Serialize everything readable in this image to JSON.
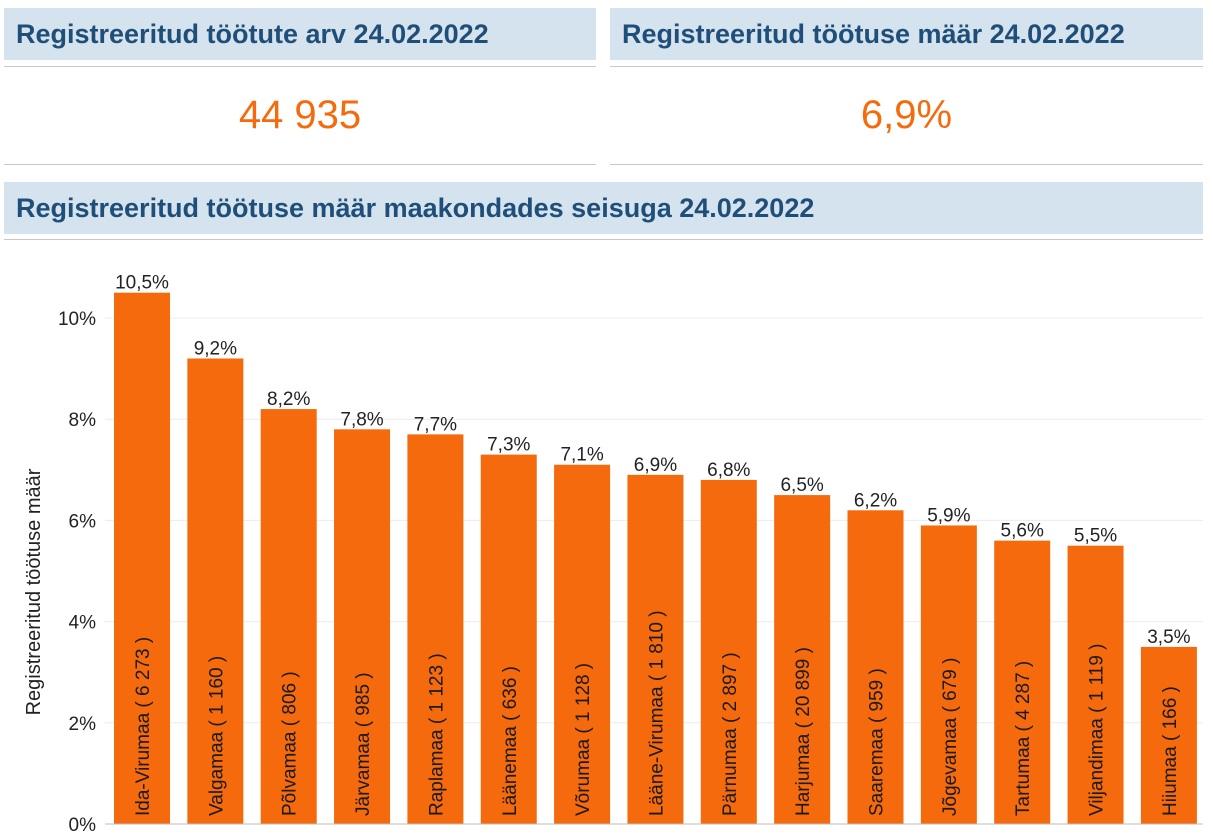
{
  "kpi_count": {
    "title": "Registreeritud töötute arv 24.02.2022",
    "value": "44 935"
  },
  "kpi_rate": {
    "title": "Registreeritud töötuse määr 24.02.2022",
    "value": "6,9%"
  },
  "chart_panel": {
    "title": "Registreeritud töötuse määr maakondades seisuga 24.02.2022"
  },
  "colors": {
    "accent": "#f46a0c",
    "header_bg": "#d5e3ee",
    "header_text": "#1f4e79"
  },
  "chart_data": {
    "type": "bar",
    "title": "Registreeritud töötuse määr maakondades seisuga 24.02.2022",
    "ylabel": "Registreeritud töötuse määr",
    "xlabel": "",
    "ylim": [
      0,
      10.8
    ],
    "yticks": [
      0,
      2,
      4,
      6,
      8,
      10
    ],
    "ytick_labels": [
      "0%",
      "2%",
      "4%",
      "6%",
      "8%",
      "10%"
    ],
    "grid": true,
    "categories": [
      "Ida-Virumaa ( 6 273 )",
      "Valgamaa ( 1 160 )",
      "Põlvamaa ( 806 )",
      "Järvamaa ( 985 )",
      "Raplamaa ( 1 123 )",
      "Läänemaa ( 636 )",
      "Võrumaa ( 1 128 )",
      "Lääne-Virumaa ( 1 810 )",
      "Pärnumaa ( 2 897 )",
      "Harjumaa ( 20 899 )",
      "Saaremaa ( 959 )",
      "Jõgevamaa ( 679 )",
      "Tartumaa ( 4 287 )",
      "Viljandimaa ( 1 119 )",
      "Hiiumaa ( 166 )"
    ],
    "values": [
      10.5,
      9.2,
      8.2,
      7.8,
      7.7,
      7.3,
      7.1,
      6.9,
      6.8,
      6.5,
      6.2,
      5.9,
      5.6,
      5.5,
      3.5
    ],
    "value_labels": [
      "10,5%",
      "9,2%",
      "8,2%",
      "7,8%",
      "7,7%",
      "7,3%",
      "7,1%",
      "6,9%",
      "6,8%",
      "6,5%",
      "6,2%",
      "5,9%",
      "5,6%",
      "5,5%",
      "3,5%"
    ],
    "bar_color": "#f46a0c"
  }
}
